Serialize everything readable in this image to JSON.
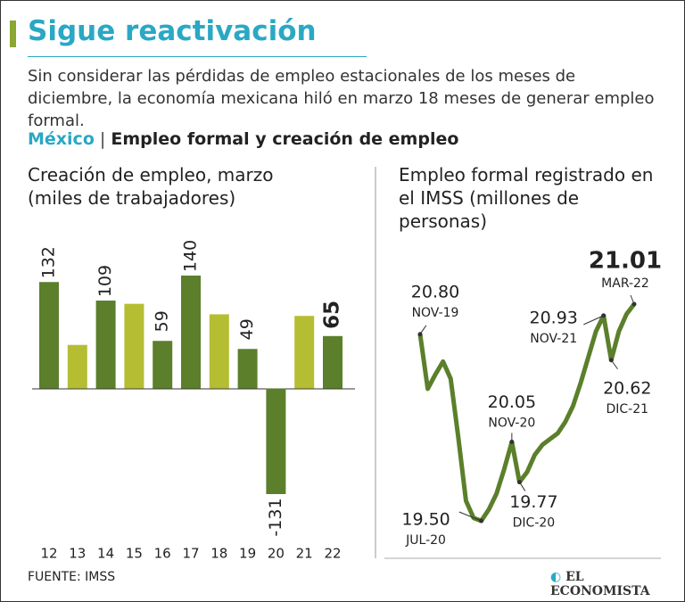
{
  "header": {
    "title": "Sigue reactivación",
    "subtitle": "Sin considerar las pérdidas de empleo estacionales de los meses de diciembre, la economía mexicana hiló en marzo 18 meses de generar empleo formal.",
    "country": "México",
    "section": "Empleo formal y creación de empleo"
  },
  "chart_data": [
    {
      "type": "bar",
      "title": "Creación de empleo, marzo (miles de trabajadores)",
      "categories": [
        "12",
        "13",
        "14",
        "15",
        "16",
        "17",
        "18",
        "19",
        "20",
        "21",
        "22"
      ],
      "values": [
        132,
        54,
        109,
        105,
        59,
        140,
        92,
        49,
        -131,
        90,
        65
      ],
      "value_labels": [
        "132",
        null,
        "109",
        null,
        "59",
        "140",
        null,
        "49",
        "-131",
        null,
        "65"
      ],
      "colors": [
        "#5b7f2b",
        "#b5be32",
        "#5b7f2b",
        "#b5be32",
        "#5b7f2b",
        "#5b7f2b",
        "#b5be32",
        "#5b7f2b",
        "#5b7f2b",
        "#b5be32",
        "#5b7f2b"
      ]
    },
    {
      "type": "line",
      "title": "Empleo formal registrado en el IMSS (millones de personas)",
      "categories": [
        "NOV-19",
        null,
        null,
        null,
        null,
        null,
        null,
        null,
        "JUL-20",
        null,
        null,
        null,
        "NOV-20",
        "DIC-20",
        null,
        null,
        null,
        null,
        null,
        null,
        null,
        null,
        null,
        null,
        "NOV-21",
        "DIC-21",
        null,
        null,
        "MAR-22"
      ],
      "values": [
        20.8,
        20.42,
        20.52,
        20.61,
        20.49,
        20.08,
        19.64,
        19.52,
        19.5,
        19.58,
        19.69,
        19.86,
        20.05,
        19.77,
        19.84,
        19.96,
        20.03,
        20.07,
        20.11,
        20.19,
        20.3,
        20.46,
        20.64,
        20.82,
        20.93,
        20.62,
        20.82,
        20.94,
        21.01
      ],
      "value_labels": [
        "20.80",
        null,
        null,
        null,
        null,
        null,
        null,
        null,
        "19.50",
        null,
        null,
        null,
        "20.05",
        "19.77",
        null,
        null,
        null,
        null,
        null,
        null,
        null,
        null,
        null,
        null,
        "20.93",
        "20.62",
        null,
        null,
        "21.01"
      ],
      "color": "#5b7f2b"
    }
  ],
  "footer": {
    "source": "FUENTE: IMSS",
    "logo": "EL ECONOMISTA"
  }
}
